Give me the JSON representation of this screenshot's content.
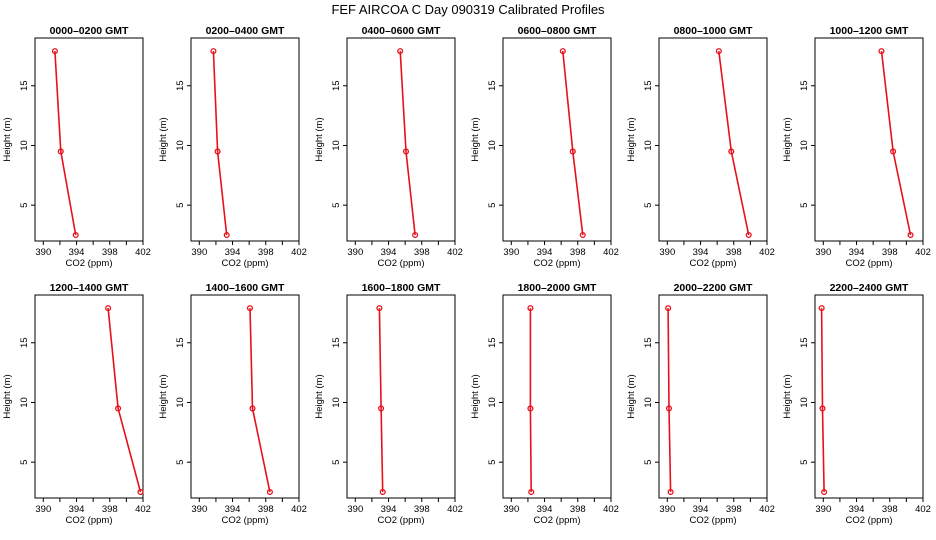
{
  "title": "FEF AIRCOA C  Day 090319  Calibrated Profiles",
  "colors": {
    "series": "#e8101a",
    "frame": "#000000"
  },
  "chart_data": [
    {
      "type": "line",
      "title": "0000–0200 GMT",
      "xlabel": "CO2 (ppm)",
      "ylabel": "Height (m)",
      "xlim": [
        389,
        402
      ],
      "ylim": [
        2,
        19
      ],
      "xticks": [
        "390",
        "394",
        "398",
        "402"
      ],
      "yticks": [
        "5",
        "10",
        "15"
      ],
      "grid": false,
      "series": [
        {
          "x": [
            391.4,
            392.1,
            393.9
          ],
          "y": [
            17.9,
            9.5,
            2.5
          ]
        }
      ]
    },
    {
      "type": "line",
      "title": "0200–0400 GMT",
      "xlabel": "CO2 (ppm)",
      "ylabel": "Height (m)",
      "xlim": [
        389,
        402
      ],
      "ylim": [
        2,
        19
      ],
      "xticks": [
        "390",
        "394",
        "398",
        "402"
      ],
      "yticks": [
        "5",
        "10",
        "15"
      ],
      "grid": false,
      "series": [
        {
          "x": [
            391.7,
            392.2,
            393.3
          ],
          "y": [
            17.9,
            9.5,
            2.5
          ]
        }
      ]
    },
    {
      "type": "line",
      "title": "0400–0600 GMT",
      "xlabel": "CO2 (ppm)",
      "ylabel": "Height (m)",
      "xlim": [
        389,
        402
      ],
      "ylim": [
        2,
        19
      ],
      "xticks": [
        "390",
        "394",
        "398",
        "402"
      ],
      "yticks": [
        "5",
        "10",
        "15"
      ],
      "grid": false,
      "series": [
        {
          "x": [
            395.4,
            396.1,
            397.2
          ],
          "y": [
            17.9,
            9.5,
            2.5
          ]
        }
      ]
    },
    {
      "type": "line",
      "title": "0600–0800 GMT",
      "xlabel": "CO2 (ppm)",
      "ylabel": "Height (m)",
      "xlim": [
        389,
        402
      ],
      "ylim": [
        2,
        19
      ],
      "xticks": [
        "390",
        "394",
        "398",
        "402"
      ],
      "yticks": [
        "5",
        "10",
        "15"
      ],
      "grid": false,
      "series": [
        {
          "x": [
            396.2,
            397.4,
            398.6
          ],
          "y": [
            17.9,
            9.5,
            2.5
          ]
        }
      ]
    },
    {
      "type": "line",
      "title": "0800–1000 GMT",
      "xlabel": "CO2 (ppm)",
      "ylabel": "Height (m)",
      "xlim": [
        389,
        402
      ],
      "ylim": [
        2,
        19
      ],
      "xticks": [
        "390",
        "394",
        "398",
        "402"
      ],
      "yticks": [
        "5",
        "10",
        "15"
      ],
      "grid": false,
      "series": [
        {
          "x": [
            396.2,
            397.7,
            399.8
          ],
          "y": [
            17.9,
            9.5,
            2.5
          ]
        }
      ]
    },
    {
      "type": "line",
      "title": "1000–1200 GMT",
      "xlabel": "CO2 (ppm)",
      "ylabel": "Height (m)",
      "xlim": [
        389,
        402
      ],
      "ylim": [
        2,
        19
      ],
      "xticks": [
        "390",
        "394",
        "398",
        "402"
      ],
      "yticks": [
        "5",
        "10",
        "15"
      ],
      "grid": false,
      "series": [
        {
          "x": [
            397.0,
            398.4,
            400.5
          ],
          "y": [
            17.9,
            9.5,
            2.5
          ]
        }
      ]
    },
    {
      "type": "line",
      "title": "1200–1400 GMT",
      "xlabel": "CO2 (ppm)",
      "ylabel": "Height (m)",
      "xlim": [
        389,
        402
      ],
      "ylim": [
        2,
        19
      ],
      "xticks": [
        "390",
        "394",
        "398",
        "402"
      ],
      "yticks": [
        "5",
        "10",
        "15"
      ],
      "grid": false,
      "series": [
        {
          "x": [
            397.8,
            399.0,
            401.7
          ],
          "y": [
            17.9,
            9.5,
            2.5
          ]
        }
      ]
    },
    {
      "type": "line",
      "title": "1400–1600 GMT",
      "xlabel": "CO2 (ppm)",
      "ylabel": "Height (m)",
      "xlim": [
        389,
        402
      ],
      "ylim": [
        2,
        19
      ],
      "xticks": [
        "390",
        "394",
        "398",
        "402"
      ],
      "yticks": [
        "5",
        "10",
        "15"
      ],
      "grid": false,
      "series": [
        {
          "x": [
            396.1,
            396.4,
            398.5
          ],
          "y": [
            17.9,
            9.5,
            2.5
          ]
        }
      ]
    },
    {
      "type": "line",
      "title": "1600–1800 GMT",
      "xlabel": "CO2 (ppm)",
      "ylabel": "Height (m)",
      "xlim": [
        389,
        402
      ],
      "ylim": [
        2,
        19
      ],
      "xticks": [
        "390",
        "394",
        "398",
        "402"
      ],
      "yticks": [
        "5",
        "10",
        "15"
      ],
      "grid": false,
      "series": [
        {
          "x": [
            392.9,
            393.1,
            393.3
          ],
          "y": [
            17.9,
            9.5,
            2.5
          ]
        }
      ]
    },
    {
      "type": "line",
      "title": "1800–2000 GMT",
      "xlabel": "CO2 (ppm)",
      "ylabel": "Height (m)",
      "xlim": [
        389,
        402
      ],
      "ylim": [
        2,
        19
      ],
      "xticks": [
        "390",
        "394",
        "398",
        "402"
      ],
      "yticks": [
        "5",
        "10",
        "15"
      ],
      "grid": false,
      "series": [
        {
          "x": [
            392.3,
            392.3,
            392.4
          ],
          "y": [
            17.9,
            9.5,
            2.5
          ]
        }
      ]
    },
    {
      "type": "line",
      "title": "2000–2200 GMT",
      "xlabel": "CO2 (ppm)",
      "ylabel": "Height (m)",
      "xlim": [
        389,
        402
      ],
      "ylim": [
        2,
        19
      ],
      "xticks": [
        "390",
        "394",
        "398",
        "402"
      ],
      "yticks": [
        "5",
        "10",
        "15"
      ],
      "grid": false,
      "series": [
        {
          "x": [
            390.1,
            390.2,
            390.4
          ],
          "y": [
            17.9,
            9.5,
            2.5
          ]
        }
      ]
    },
    {
      "type": "line",
      "title": "2200–2400 GMT",
      "xlabel": "CO2 (ppm)",
      "ylabel": "Height (m)",
      "xlim": [
        389,
        402
      ],
      "ylim": [
        2,
        19
      ],
      "xticks": [
        "390",
        "394",
        "398",
        "402"
      ],
      "yticks": [
        "5",
        "10",
        "15"
      ],
      "grid": false,
      "series": [
        {
          "x": [
            389.8,
            389.9,
            390.1
          ],
          "y": [
            17.9,
            9.5,
            2.5
          ]
        }
      ]
    }
  ]
}
